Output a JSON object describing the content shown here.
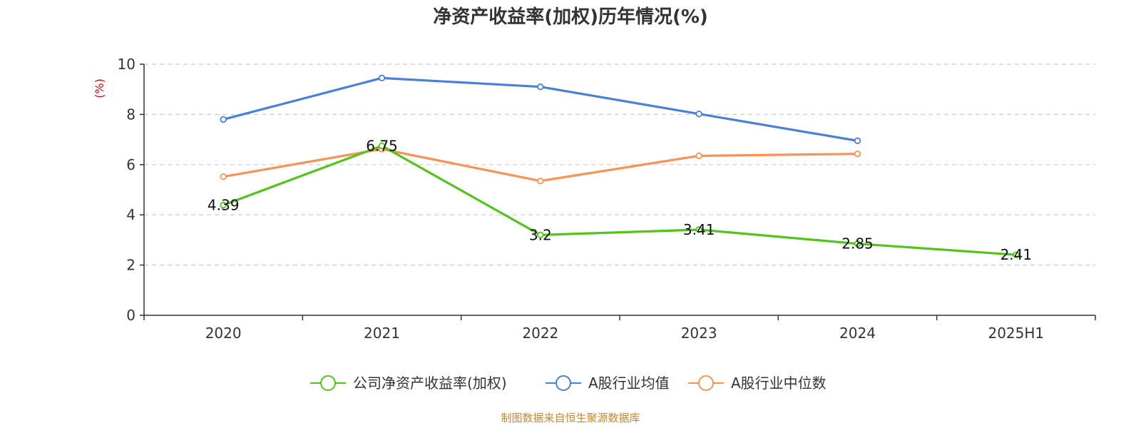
{
  "chart_data": {
    "type": "line",
    "title": "净资产收益率(加权)历年情况(%)",
    "ylabel": "(%)",
    "xlabel": "",
    "categories": [
      "2020",
      "2021",
      "2022",
      "2023",
      "2024",
      "2025H1"
    ],
    "ylim": [
      0,
      10
    ],
    "yticks": [
      0,
      2,
      4,
      6,
      8,
      10
    ],
    "grid": true,
    "legend_position": "bottom",
    "series": [
      {
        "name": "公司净资产收益率(加权)",
        "color": "#52c41a",
        "values": [
          4.39,
          6.75,
          3.2,
          3.41,
          2.85,
          2.41
        ],
        "labels": [
          "4.39",
          "6.75",
          "3.2",
          "3.41",
          "2.85",
          "2.41"
        ]
      },
      {
        "name": "A股行业均值",
        "color": "#4a7fdc",
        "values": [
          7.8,
          9.45,
          9.1,
          8.02,
          6.95,
          null
        ]
      },
      {
        "name": "A股行业中位数",
        "color": "#f89257",
        "values": [
          5.52,
          6.62,
          5.35,
          6.35,
          6.43,
          null
        ]
      }
    ],
    "source": "制图数据来自恒生聚源数据库"
  }
}
